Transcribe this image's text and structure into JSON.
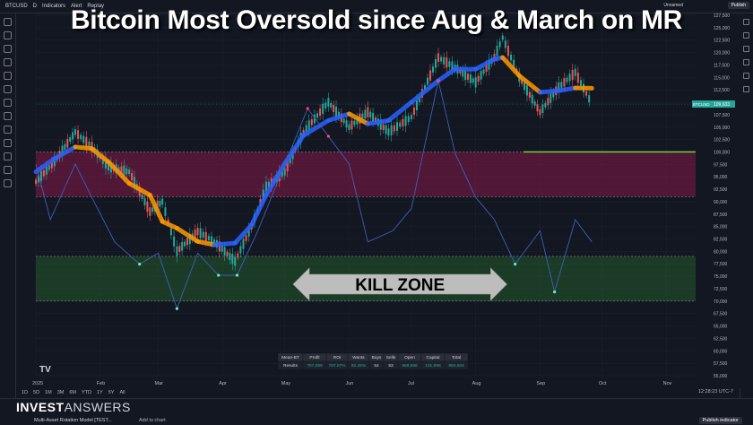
{
  "title": "Bitcoin Most Oversold since Aug & March on MR",
  "topbar": {
    "symbol": "BTCUSD",
    "interval": "D",
    "indicators": "Indicators",
    "alert": "Alert",
    "replay": "Replay",
    "unnamed": "Unnamed",
    "publish": "Publish"
  },
  "brand": {
    "bold": "INVEST",
    "light": "ANSWERS"
  },
  "footer": {
    "indicator_label": "Multi-Asset Rotation Model [TEST...",
    "add_chart": "Add to chart",
    "publish_indicator": "Publish indicator"
  },
  "timeframes": [
    "1D",
    "5D",
    "1M",
    "3M",
    "6M",
    "YTD",
    "1Y",
    "5Y",
    "All"
  ],
  "utc_label": "12:28:23 UTC-7",
  "chart_data": {
    "type": "line",
    "x_tick_labels": [
      "2025",
      "Feb",
      "Mar",
      "Apr",
      "May",
      "Jun",
      "Jul",
      "Aug",
      "Sep",
      "Oct",
      "Nov"
    ],
    "y_price_labels": [
      "127,500",
      "125,000",
      "122,500",
      "120,000",
      "117,500",
      "115,000",
      "112,500",
      "110,000",
      "107,500",
      "105,000",
      "102,500",
      "100,000",
      "97,500",
      "95,000",
      "92,500",
      "90,000",
      "87,500",
      "85,000",
      "82,500",
      "80,000",
      "77,500",
      "75,000",
      "72,500",
      "70,000",
      "67,500",
      "65,000",
      "62,500",
      "60,000",
      "57,500",
      "55,000"
    ],
    "ylim": [
      55000,
      127500
    ],
    "current_price_label": "BTCUSD",
    "current_price": "109,633",
    "support_level": 100000,
    "zones": [
      {
        "name": "overbought",
        "from": 91000,
        "to": 100000,
        "color": "#c2185b"
      },
      {
        "name": "oversold",
        "from": 70000,
        "to": 79000,
        "color": "#2e7d32"
      }
    ],
    "price_series": {
      "name": "BTCUSD",
      "x": [
        "2025-01-01",
        "2025-01-10",
        "2025-01-20",
        "2025-01-28",
        "2025-02-05",
        "2025-02-15",
        "2025-02-25",
        "2025-03-03",
        "2025-03-10",
        "2025-03-20",
        "2025-03-28",
        "2025-04-07",
        "2025-04-15",
        "2025-04-22",
        "2025-05-01",
        "2025-05-10",
        "2025-05-22",
        "2025-06-01",
        "2025-06-10",
        "2025-06-20",
        "2025-07-01",
        "2025-07-14",
        "2025-07-22",
        "2025-08-01",
        "2025-08-10",
        "2025-08-14",
        "2025-08-22",
        "2025-09-01",
        "2025-09-10",
        "2025-09-18",
        "2025-09-26"
      ],
      "y": [
        94000,
        98000,
        104000,
        101000,
        97000,
        96000,
        88000,
        90000,
        80000,
        84000,
        82000,
        78000,
        85000,
        93000,
        96000,
        104000,
        110000,
        105000,
        108000,
        104000,
        107000,
        119000,
        117000,
        114000,
        119000,
        123000,
        115000,
        108000,
        113000,
        116000,
        109633
      ]
    },
    "oscillator": {
      "x": [
        "2025-01-01",
        "2025-01-08",
        "2025-01-20",
        "2025-01-28",
        "2025-02-08",
        "2025-02-20",
        "2025-03-01",
        "2025-03-10",
        "2025-03-20",
        "2025-03-30",
        "2025-04-08",
        "2025-04-18",
        "2025-05-01",
        "2025-05-12",
        "2025-05-22",
        "2025-06-01",
        "2025-06-10",
        "2025-06-22",
        "2025-07-01",
        "2025-07-14",
        "2025-07-22",
        "2025-08-01",
        "2025-08-10",
        "2025-08-20",
        "2025-09-01",
        "2025-09-08",
        "2025-09-18",
        "2025-09-26"
      ],
      "y": [
        1,
        0,
        1,
        0.4,
        -0.4,
        -0.8,
        -0.6,
        -1.6,
        -0.6,
        -1,
        -1,
        -0.2,
        1,
        2,
        1.5,
        1,
        -0.4,
        -0.2,
        0.2,
        2.5,
        1.2,
        0.4,
        0,
        -0.8,
        -0.2,
        -1.3,
        0,
        -0.4
      ]
    },
    "stats_table": {
      "headers": [
        "Mean-BT",
        "Profit",
        "ROI",
        "Wants",
        "Buys",
        "Sells",
        "Open",
        "Capital",
        "Total"
      ],
      "row": [
        "Results",
        "787,069",
        "787.07%",
        "92.45%",
        "54",
        "53",
        "868,666",
        "191,998",
        "850,664"
      ]
    },
    "annotation": "KILL ZONE"
  }
}
